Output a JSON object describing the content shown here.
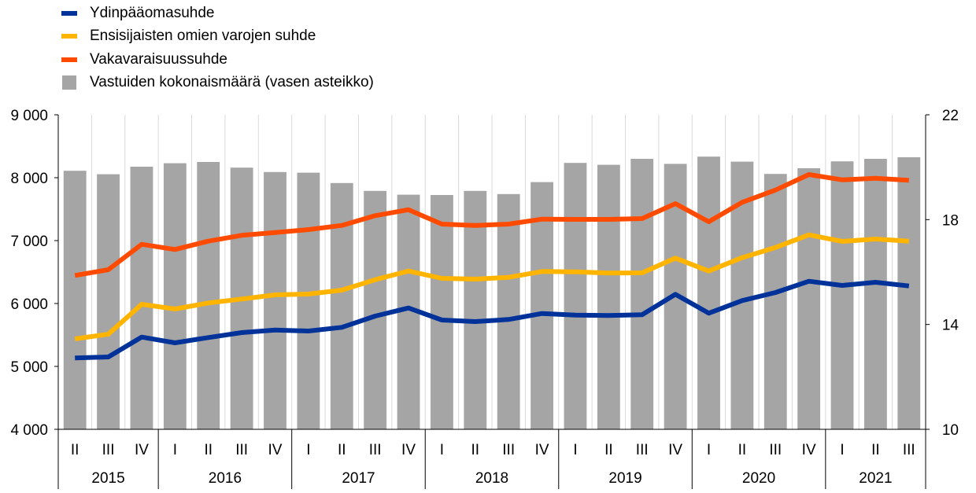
{
  "chart_data": {
    "type": "bar+line",
    "legend_position": "top-left",
    "grid": "vertical-lines",
    "quarter_labels": [
      "II",
      "III",
      "IV",
      "I",
      "II",
      "III",
      "IV",
      "I",
      "II",
      "III",
      "IV",
      "I",
      "II",
      "III",
      "IV",
      "I",
      "II",
      "III",
      "IV",
      "I",
      "II",
      "III",
      "IV",
      "I",
      "II",
      "III"
    ],
    "year_labels": [
      "2015",
      "2016",
      "2017",
      "2018",
      "2019",
      "2020",
      "2021"
    ],
    "left_axis": {
      "ylim": [
        4000,
        9000
      ],
      "ticks": [
        4000,
        5000,
        6000,
        7000,
        8000,
        9000
      ],
      "tick_labels": [
        "4 000",
        "5 000",
        "6 000",
        "7 000",
        "8 000",
        "9 000"
      ]
    },
    "right_axis": {
      "ylim": [
        10,
        22
      ],
      "ticks": [
        10,
        14,
        18,
        22
      ],
      "tick_labels": [
        "10",
        "14",
        "18",
        "22"
      ]
    },
    "series": [
      {
        "name": "Ydinpääomasuhde",
        "type": "line",
        "axis": "right",
        "color": "#003299",
        "values": [
          12.72,
          12.76,
          13.52,
          13.3,
          13.5,
          13.69,
          13.79,
          13.75,
          13.89,
          14.32,
          14.63,
          14.17,
          14.11,
          14.19,
          14.42,
          14.36,
          14.34,
          14.37,
          15.15,
          14.43,
          14.91,
          15.22,
          15.65,
          15.49,
          15.61,
          15.47
        ]
      },
      {
        "name": "Ensisijaisten omien varojen suhde",
        "type": "line",
        "axis": "right",
        "color": "#FFB400",
        "values": [
          13.45,
          13.63,
          14.77,
          14.59,
          14.82,
          14.97,
          15.13,
          15.16,
          15.31,
          15.71,
          16.04,
          15.76,
          15.73,
          15.8,
          16.02,
          16.01,
          15.96,
          15.97,
          16.53,
          16.04,
          16.55,
          16.94,
          17.42,
          17.17,
          17.26,
          17.18
        ]
      },
      {
        "name": "Vakavaraisuussuhde",
        "type": "line",
        "axis": "right",
        "color": "#FF4B00",
        "values": [
          15.87,
          16.09,
          17.06,
          16.86,
          17.18,
          17.4,
          17.51,
          17.62,
          17.78,
          18.15,
          18.38,
          17.83,
          17.78,
          17.83,
          18.02,
          18.01,
          18.01,
          18.04,
          18.61,
          17.92,
          18.66,
          19.13,
          19.72,
          19.52,
          19.58,
          19.5
        ]
      },
      {
        "name": "Vastuiden kokonaismäärä (vasen asteikko)",
        "type": "bar",
        "axis": "left",
        "color": "#A5A5A5",
        "values": [
          8110,
          8055,
          8175,
          8230,
          8250,
          8160,
          8090,
          8080,
          7915,
          7790,
          7730,
          7725,
          7790,
          7740,
          7930,
          8235,
          8205,
          8300,
          8220,
          8335,
          8255,
          8060,
          8150,
          8260,
          8300,
          8325
        ]
      }
    ]
  }
}
